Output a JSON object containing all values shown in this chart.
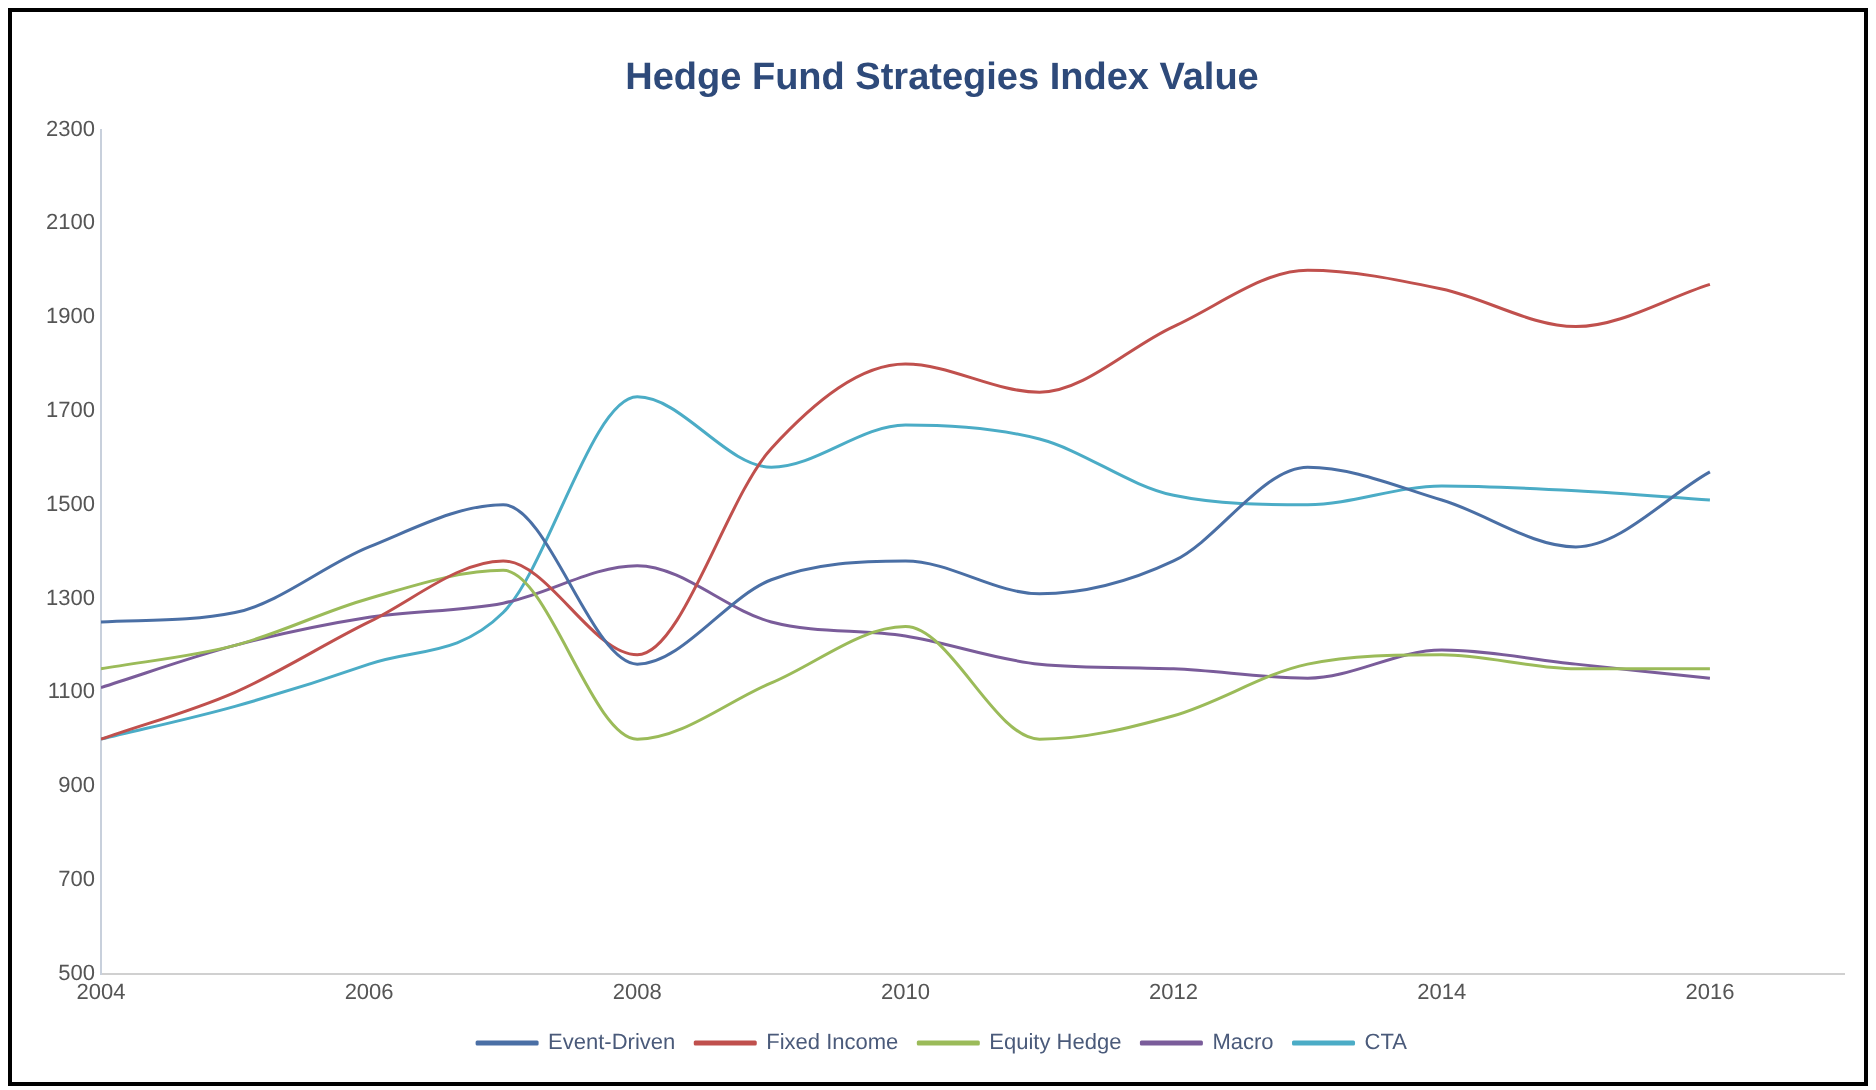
{
  "chart_data": {
    "type": "line",
    "title": "Hedge Fund Strategies Index Value",
    "x": [
      2004,
      2005,
      2006,
      2007,
      2008,
      2009,
      2010,
      2011,
      2012,
      2013,
      2014,
      2015,
      2016
    ],
    "series": [
      {
        "name": "Event-Driven",
        "color": "#4a6fa5",
        "values": [
          1250,
          1270,
          1410,
          1500,
          1160,
          1340,
          1380,
          1310,
          1380,
          1580,
          1510,
          1410,
          1570
        ]
      },
      {
        "name": "Fixed Income",
        "color": "#c0504d",
        "values": [
          1000,
          1100,
          1250,
          1380,
          1180,
          1620,
          1800,
          1740,
          1880,
          2000,
          1960,
          1880,
          1970
        ]
      },
      {
        "name": "Equity Hedge",
        "color": "#9bbb59",
        "values": [
          1150,
          1200,
          1300,
          1360,
          1000,
          1120,
          1240,
          1000,
          1050,
          1160,
          1180,
          1150,
          1150
        ]
      },
      {
        "name": "Macro",
        "color": "#7a5c9a",
        "values": [
          1110,
          1200,
          1260,
          1290,
          1370,
          1250,
          1220,
          1160,
          1150,
          1130,
          1190,
          1160,
          1130
        ]
      },
      {
        "name": "CTA",
        "color": "#4bacc6",
        "values": [
          1000,
          1070,
          1160,
          1270,
          1730,
          1580,
          1670,
          1640,
          1520,
          1500,
          1540,
          1530,
          1510
        ]
      }
    ],
    "xlim": [
      2004,
      2017
    ],
    "xticks": [
      2004,
      2006,
      2008,
      2010,
      2012,
      2014,
      2016
    ],
    "ylim": [
      500,
      2300
    ],
    "yticks": [
      500,
      700,
      900,
      1100,
      1300,
      1500,
      1700,
      1900,
      2100,
      2300
    ],
    "grid": false,
    "legend": "bottom",
    "marker": "none",
    "line_style": "solid"
  }
}
